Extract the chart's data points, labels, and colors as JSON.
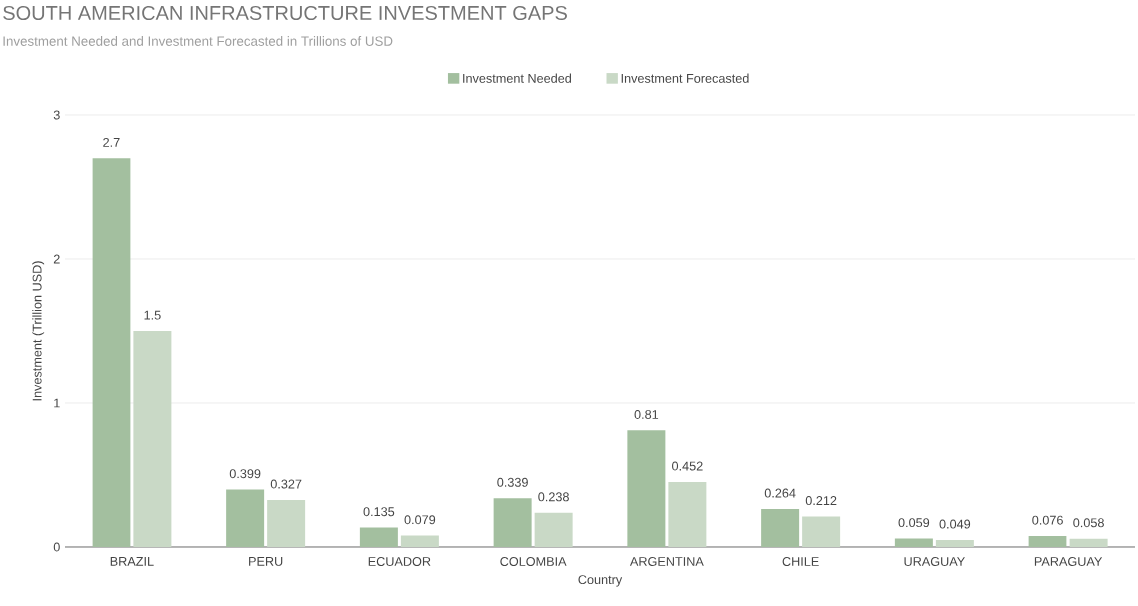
{
  "chart_data": {
    "type": "bar",
    "title": "SOUTH AMERICAN INFRASTRUCTURE INVESTMENT GAPS",
    "subtitle": "Investment Needed and Investment Forecasted in Trillions of USD",
    "xlabel": "Country",
    "ylabel": "Investment (Trillion USD)",
    "categories": [
      "BRAZIL",
      "PERU",
      "ECUADOR",
      "COLOMBIA",
      "ARGENTINA",
      "CHILE",
      "URAGUAY",
      "PARAGUAY"
    ],
    "series": [
      {
        "name": "Investment Needed",
        "color": "#a3bf9f",
        "values": [
          2.7,
          0.399,
          0.135,
          0.339,
          0.81,
          0.264,
          0.059,
          0.076
        ]
      },
      {
        "name": "Investment Forecasted",
        "color": "#c9d9c6",
        "values": [
          1.5,
          0.327,
          0.079,
          0.238,
          0.452,
          0.212,
          0.049,
          0.058
        ]
      }
    ],
    "ylim": [
      0,
      3
    ],
    "yticks": [
      0,
      1,
      2,
      3
    ],
    "grid": "y",
    "legend": "top",
    "data_labels": true
  }
}
